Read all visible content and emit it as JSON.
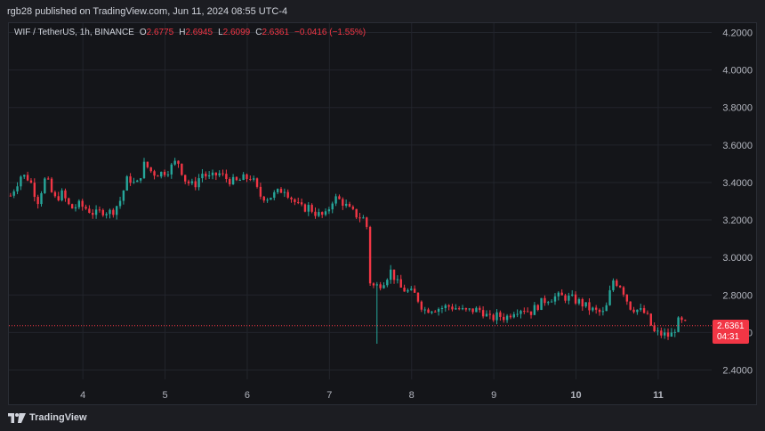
{
  "header": {
    "publish_text": "rgb28 published on TradingView.com, Jun 11, 2024 08:55 UTC-4"
  },
  "legend": {
    "symbol": "WIF / TetherUS, 1h, BINANCE",
    "o_label": "O",
    "o_value": "2.6775",
    "h_label": "H",
    "h_value": "2.6945",
    "l_label": "L",
    "l_value": "2.6099",
    "c_label": "C",
    "c_value": "2.6361",
    "change": "−0.0416 (−1.55%)"
  },
  "price_tag": {
    "price": "2.6361",
    "countdown": "04:31"
  },
  "footer": {
    "brand": "TradingView",
    "logo_icon": "tradingview-logo-icon"
  },
  "colors": {
    "up": "#26a69a",
    "down": "#f23645",
    "background": "#141519",
    "grid": "#22252c",
    "axis_text": "#b2b5be"
  },
  "chart_data": {
    "type": "candlestick",
    "interval": "1h",
    "ylim": [
      2.35,
      4.25
    ],
    "y_ticks": [
      "2.4000",
      "2.6000",
      "2.8000",
      "3.0000",
      "3.2000",
      "3.4000",
      "3.6000",
      "3.8000",
      "4.0000",
      "4.2000"
    ],
    "x_ticks": [
      {
        "label": "4",
        "t": 3,
        "bold": false
      },
      {
        "label": "5",
        "t": 4,
        "bold": false
      },
      {
        "label": "6",
        "t": 5,
        "bold": false
      },
      {
        "label": "7",
        "t": 6,
        "bold": false
      },
      {
        "label": "8",
        "t": 7,
        "bold": false
      },
      {
        "label": "9",
        "t": 8,
        "bold": false
      },
      {
        "label": "10",
        "t": 9,
        "bold": true
      },
      {
        "label": "11",
        "t": 10,
        "bold": true
      }
    ],
    "t_range": [
      2.1,
      10.65
    ],
    "last_price": 2.6361,
    "key_closes": [
      [
        2.12,
        3.33
      ],
      [
        2.25,
        3.44
      ],
      [
        2.35,
        3.42
      ],
      [
        2.45,
        3.3
      ],
      [
        2.55,
        3.43
      ],
      [
        2.65,
        3.31
      ],
      [
        2.75,
        3.34
      ],
      [
        2.85,
        3.26
      ],
      [
        2.95,
        3.28
      ],
      [
        3.05,
        3.26
      ],
      [
        3.15,
        3.23
      ],
      [
        3.25,
        3.25
      ],
      [
        3.35,
        3.24
      ],
      [
        3.45,
        3.3
      ],
      [
        3.55,
        3.43
      ],
      [
        3.65,
        3.38
      ],
      [
        3.75,
        3.5
      ],
      [
        3.85,
        3.45
      ],
      [
        3.95,
        3.45
      ],
      [
        4.05,
        3.47
      ],
      [
        4.15,
        3.52
      ],
      [
        4.25,
        3.41
      ],
      [
        4.35,
        3.38
      ],
      [
        4.45,
        3.45
      ],
      [
        4.55,
        3.42
      ],
      [
        4.65,
        3.45
      ],
      [
        4.75,
        3.42
      ],
      [
        4.85,
        3.4
      ],
      [
        4.95,
        3.42
      ],
      [
        5.05,
        3.43
      ],
      [
        5.15,
        3.33
      ],
      [
        5.25,
        3.32
      ],
      [
        5.35,
        3.34
      ],
      [
        5.45,
        3.37
      ],
      [
        5.55,
        3.31
      ],
      [
        5.65,
        3.26
      ],
      [
        5.75,
        3.27
      ],
      [
        5.85,
        3.23
      ],
      [
        5.95,
        3.22
      ],
      [
        6.05,
        3.32
      ],
      [
        6.15,
        3.3
      ],
      [
        6.25,
        3.25
      ],
      [
        6.35,
        3.22
      ],
      [
        6.45,
        3.2
      ],
      [
        6.48,
        2.88
      ],
      [
        6.55,
        2.84
      ],
      [
        6.65,
        2.87
      ],
      [
        6.75,
        2.93
      ],
      [
        6.85,
        2.84
      ],
      [
        6.95,
        2.82
      ],
      [
        7.05,
        2.8
      ],
      [
        7.15,
        2.72
      ],
      [
        7.25,
        2.73
      ],
      [
        7.35,
        2.73
      ],
      [
        7.45,
        2.74
      ],
      [
        7.55,
        2.73
      ],
      [
        7.65,
        2.71
      ],
      [
        7.75,
        2.72
      ],
      [
        7.85,
        2.72
      ],
      [
        7.95,
        2.67
      ],
      [
        8.05,
        2.69
      ],
      [
        8.15,
        2.68
      ],
      [
        8.25,
        2.72
      ],
      [
        8.35,
        2.73
      ],
      [
        8.45,
        2.71
      ],
      [
        8.55,
        2.75
      ],
      [
        8.65,
        2.78
      ],
      [
        8.75,
        2.79
      ],
      [
        8.85,
        2.79
      ],
      [
        8.95,
        2.78
      ],
      [
        9.05,
        2.76
      ],
      [
        9.15,
        2.73
      ],
      [
        9.25,
        2.71
      ],
      [
        9.35,
        2.7
      ],
      [
        9.45,
        2.88
      ],
      [
        9.55,
        2.85
      ],
      [
        9.65,
        2.74
      ],
      [
        9.75,
        2.72
      ],
      [
        9.85,
        2.7
      ],
      [
        9.95,
        2.6
      ],
      [
        10.05,
        2.59
      ],
      [
        10.15,
        2.58
      ],
      [
        10.25,
        2.66
      ],
      [
        10.35,
        2.64
      ]
    ],
    "notable_wick": {
      "t": 6.57,
      "low": 2.54
    }
  }
}
